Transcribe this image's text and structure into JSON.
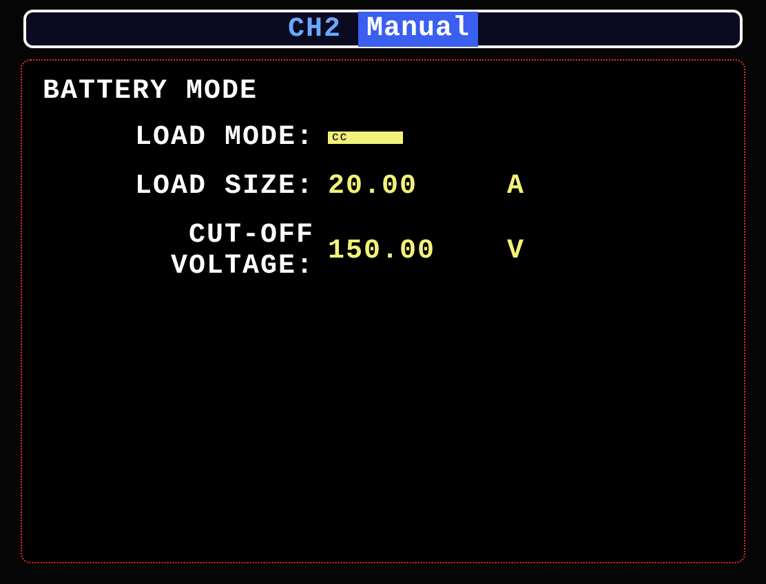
{
  "colors": {
    "background": "#000000",
    "header_border": "#ffffff",
    "header_fill": "#0a0a20",
    "channel_text": "#6aa8ff",
    "mode_badge_bg": "#3b5ff0",
    "mode_badge_text": "#ffffff",
    "panel_border": "#ff2a2a",
    "label_text": "#ffffff",
    "value_text": "#f2f27a",
    "selected_bg": "#f2f27a",
    "selected_text": "#3a3a28"
  },
  "header": {
    "channel": "CH2",
    "mode": "Manual"
  },
  "panel": {
    "title": "BATTERY MODE",
    "rows": [
      {
        "label": "LOAD MODE:",
        "value": "CC",
        "unit": "",
        "selected": true
      },
      {
        "label": "LOAD SIZE:",
        "value": "20.00",
        "unit": "A",
        "selected": false
      },
      {
        "label": "CUT-OFF VOLTAGE:",
        "value": "150.00",
        "unit": "V",
        "selected": false
      }
    ]
  }
}
